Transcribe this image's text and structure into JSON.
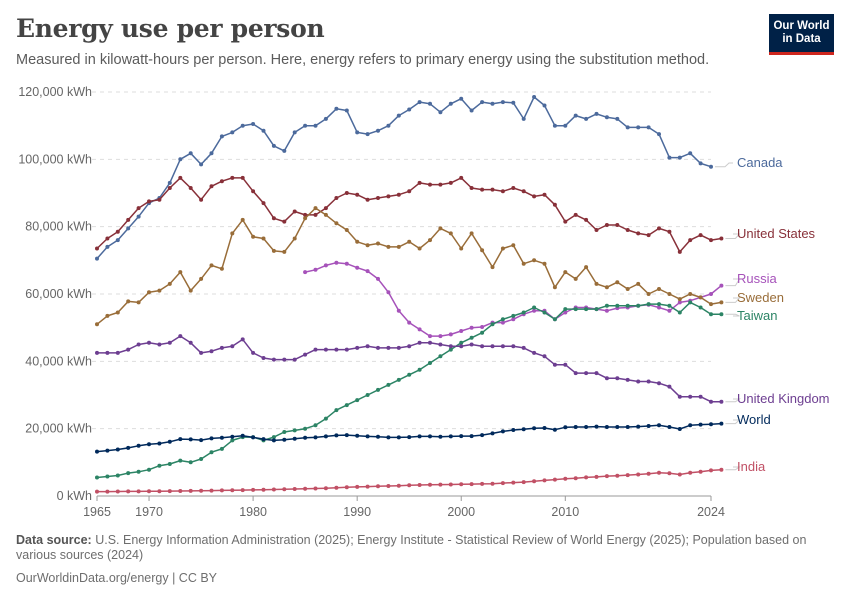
{
  "header": {
    "title": "Energy use per person",
    "subtitle": "Measured in kilowatt-hours per person. Here, energy refers to primary energy using the substitution method.",
    "logo_line1": "Our World",
    "logo_line2": "in Data"
  },
  "footer": {
    "source_label": "Data source:",
    "source_text": "U.S. Energy Information Administration (2025); Energy Institute - Statistical Review of World Energy (2025); Population based on various sources (2024)",
    "credit": "OurWorldinData.org/energy | CC BY"
  },
  "chart_data": {
    "type": "line",
    "title": "Energy use per person",
    "xlim": [
      1965,
      2024
    ],
    "ylim": [
      0,
      120000
    ],
    "x_ticks": [
      1965,
      1970,
      1980,
      1990,
      2000,
      2010,
      2024
    ],
    "y_ticks": [
      0,
      20000,
      40000,
      60000,
      80000,
      100000,
      120000
    ],
    "y_tick_labels": [
      "0 kWh",
      "20,000 kWh",
      "40,000 kWh",
      "60,000 kWh",
      "80,000 kWh",
      "100,000 kWh",
      "120,000 kWh"
    ],
    "grid": "horizontal dashed",
    "legend": "inline labels at right end",
    "colors": {
      "Canada": "#4c6a9c",
      "United States": "#883039",
      "Russia": "#a652ba",
      "Sweden": "#996d39",
      "Taiwan": "#2c8465",
      "United Kingdom": "#6d3e91",
      "World": "#00295b",
      "India": "#c15065"
    },
    "series": [
      {
        "name": "Canada",
        "start": 1965,
        "values": [
          70500,
          74000,
          76000,
          79500,
          83000,
          87000,
          88500,
          93000,
          100000,
          101800,
          98500,
          101800,
          106800,
          108000,
          110000,
          110500,
          108500,
          104000,
          102500,
          108000,
          110000,
          110000,
          112000,
          115000,
          114500,
          108000,
          107500,
          108500,
          110000,
          113000,
          114800,
          117000,
          116500,
          114000,
          116500,
          118000,
          114500,
          117000,
          116500,
          117000,
          116800,
          112000,
          118500,
          116000,
          110000,
          110000,
          113000,
          112000,
          113500,
          112500,
          112000,
          109500,
          109500,
          109500,
          107500,
          100500,
          100500,
          101800,
          98800,
          97800
        ]
      },
      {
        "name": "United States",
        "start": 1965,
        "values": [
          73500,
          76500,
          78500,
          82000,
          85500,
          87500,
          88000,
          91500,
          94500,
          91500,
          88000,
          92000,
          93500,
          94500,
          94500,
          90500,
          87000,
          82500,
          81500,
          84500,
          83500,
          83500,
          85500,
          88500,
          90000,
          89500,
          88000,
          88500,
          89000,
          89500,
          90500,
          93000,
          92500,
          92500,
          93000,
          94500,
          91500,
          91000,
          91000,
          90500,
          91500,
          90500,
          89000,
          89500,
          86500,
          81500,
          83500,
          82000,
          79000,
          80500,
          80500,
          79000,
          78000,
          77500,
          79500,
          78500,
          72500,
          76000,
          77500,
          76000,
          76500
        ]
      },
      {
        "name": "Russia",
        "start": 1985,
        "values": [
          66500,
          67200,
          68500,
          69300,
          69000,
          67800,
          66800,
          64500,
          60500,
          55000,
          51500,
          49500,
          47500,
          47500,
          48000,
          49000,
          50000,
          50200,
          51500,
          51500,
          52500,
          54000,
          55000,
          55000,
          52500,
          54500,
          56000,
          56000,
          55500,
          55000,
          55800,
          56000,
          56500,
          56800,
          56000,
          55000,
          57500,
          58000,
          59000,
          60000,
          62500
        ]
      },
      {
        "name": "Sweden",
        "start": 1965,
        "values": [
          51000,
          53500,
          54500,
          57800,
          57500,
          60500,
          61000,
          63000,
          66500,
          61000,
          64500,
          68500,
          67500,
          78000,
          82000,
          77000,
          76500,
          72800,
          72500,
          76500,
          82500,
          85500,
          83500,
          81000,
          79000,
          75500,
          74500,
          75000,
          74000,
          74000,
          75500,
          73500,
          76000,
          79500,
          78000,
          73500,
          78000,
          73000,
          68000,
          73500,
          74500,
          69000,
          70000,
          69000,
          62000,
          66500,
          64500,
          68000,
          63000,
          62000,
          63500,
          61500,
          63000,
          60000,
          61500,
          60000,
          58500,
          60000,
          59000,
          57000,
          57500
        ]
      },
      {
        "name": "Taiwan",
        "start": 1965,
        "values": [
          5500,
          5800,
          6100,
          6800,
          7200,
          7800,
          9000,
          9500,
          10500,
          10000,
          11000,
          13000,
          14000,
          16500,
          17500,
          17500,
          16500,
          17500,
          19000,
          19500,
          20000,
          21000,
          23000,
          25500,
          27000,
          28500,
          30000,
          31500,
          33000,
          34500,
          36000,
          37500,
          39500,
          41500,
          43500,
          45500,
          47000,
          48500,
          51000,
          52500,
          53500,
          54500,
          56000,
          54500,
          52500,
          55500,
          55500,
          55500,
          55500,
          56500,
          56500,
          56500,
          56500,
          57000,
          57000,
          56500,
          54500,
          57500,
          56000,
          54000,
          54000
        ]
      },
      {
        "name": "United Kingdom",
        "start": 1965,
        "values": [
          42500,
          42500,
          42500,
          43500,
          45000,
          45500,
          45000,
          45500,
          47500,
          45500,
          42500,
          43000,
          44000,
          44500,
          46500,
          42500,
          41000,
          40500,
          40500,
          40500,
          42000,
          43500,
          43500,
          43500,
          43500,
          44000,
          44500,
          44000,
          44000,
          44000,
          44500,
          45500,
          45500,
          45000,
          44500,
          44500,
          45000,
          44500,
          44500,
          44500,
          44500,
          44000,
          42500,
          41500,
          39000,
          39000,
          36500,
          36500,
          36500,
          35000,
          35000,
          34500,
          34000,
          34000,
          33500,
          32500,
          29500,
          29500,
          29500,
          28000,
          28000
        ]
      },
      {
        "name": "World",
        "start": 1965,
        "values": [
          13200,
          13500,
          13800,
          14300,
          14900,
          15400,
          15600,
          16100,
          16900,
          16800,
          16600,
          17100,
          17300,
          17600,
          17900,
          17400,
          16900,
          16500,
          16700,
          17000,
          17300,
          17400,
          17700,
          18000,
          18100,
          17900,
          17700,
          17600,
          17400,
          17400,
          17500,
          17700,
          17700,
          17600,
          17700,
          17800,
          17800,
          18100,
          18600,
          19200,
          19600,
          19800,
          20100,
          20200,
          19700,
          20400,
          20500,
          20500,
          20600,
          20500,
          20500,
          20500,
          20600,
          20800,
          21000,
          20500,
          19900,
          21000,
          21200,
          21300,
          21500
        ]
      },
      {
        "name": "India",
        "start": 1965,
        "values": [
          1300,
          1310,
          1330,
          1360,
          1380,
          1400,
          1430,
          1460,
          1480,
          1510,
          1550,
          1600,
          1650,
          1720,
          1760,
          1800,
          1850,
          1920,
          1990,
          2070,
          2150,
          2230,
          2330,
          2450,
          2580,
          2700,
          2800,
          2900,
          2980,
          3070,
          3170,
          3260,
          3320,
          3380,
          3420,
          3480,
          3520,
          3580,
          3650,
          3830,
          3980,
          4130,
          4380,
          4620,
          4870,
          5100,
          5300,
          5530,
          5680,
          5920,
          6030,
          6200,
          6400,
          6620,
          6900,
          6750,
          6400,
          6900,
          7200,
          7600,
          7800
        ]
      }
    ]
  }
}
